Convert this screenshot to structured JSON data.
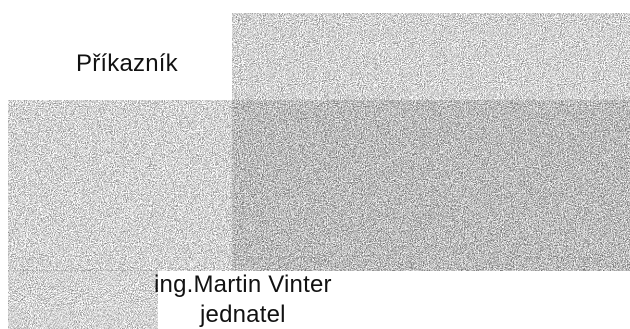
{
  "document": {
    "header_label": "Příkazník",
    "signatory_name": "ing.Martin Vinter",
    "signatory_role": "jednatel"
  },
  "image_regions": {
    "noise_style": "scanned-noise-pattern"
  },
  "colors": {
    "background": "#ffffff",
    "text": "#111111",
    "noise_dark": "#1a1a1a",
    "noise_light": "#f2f2f2"
  }
}
